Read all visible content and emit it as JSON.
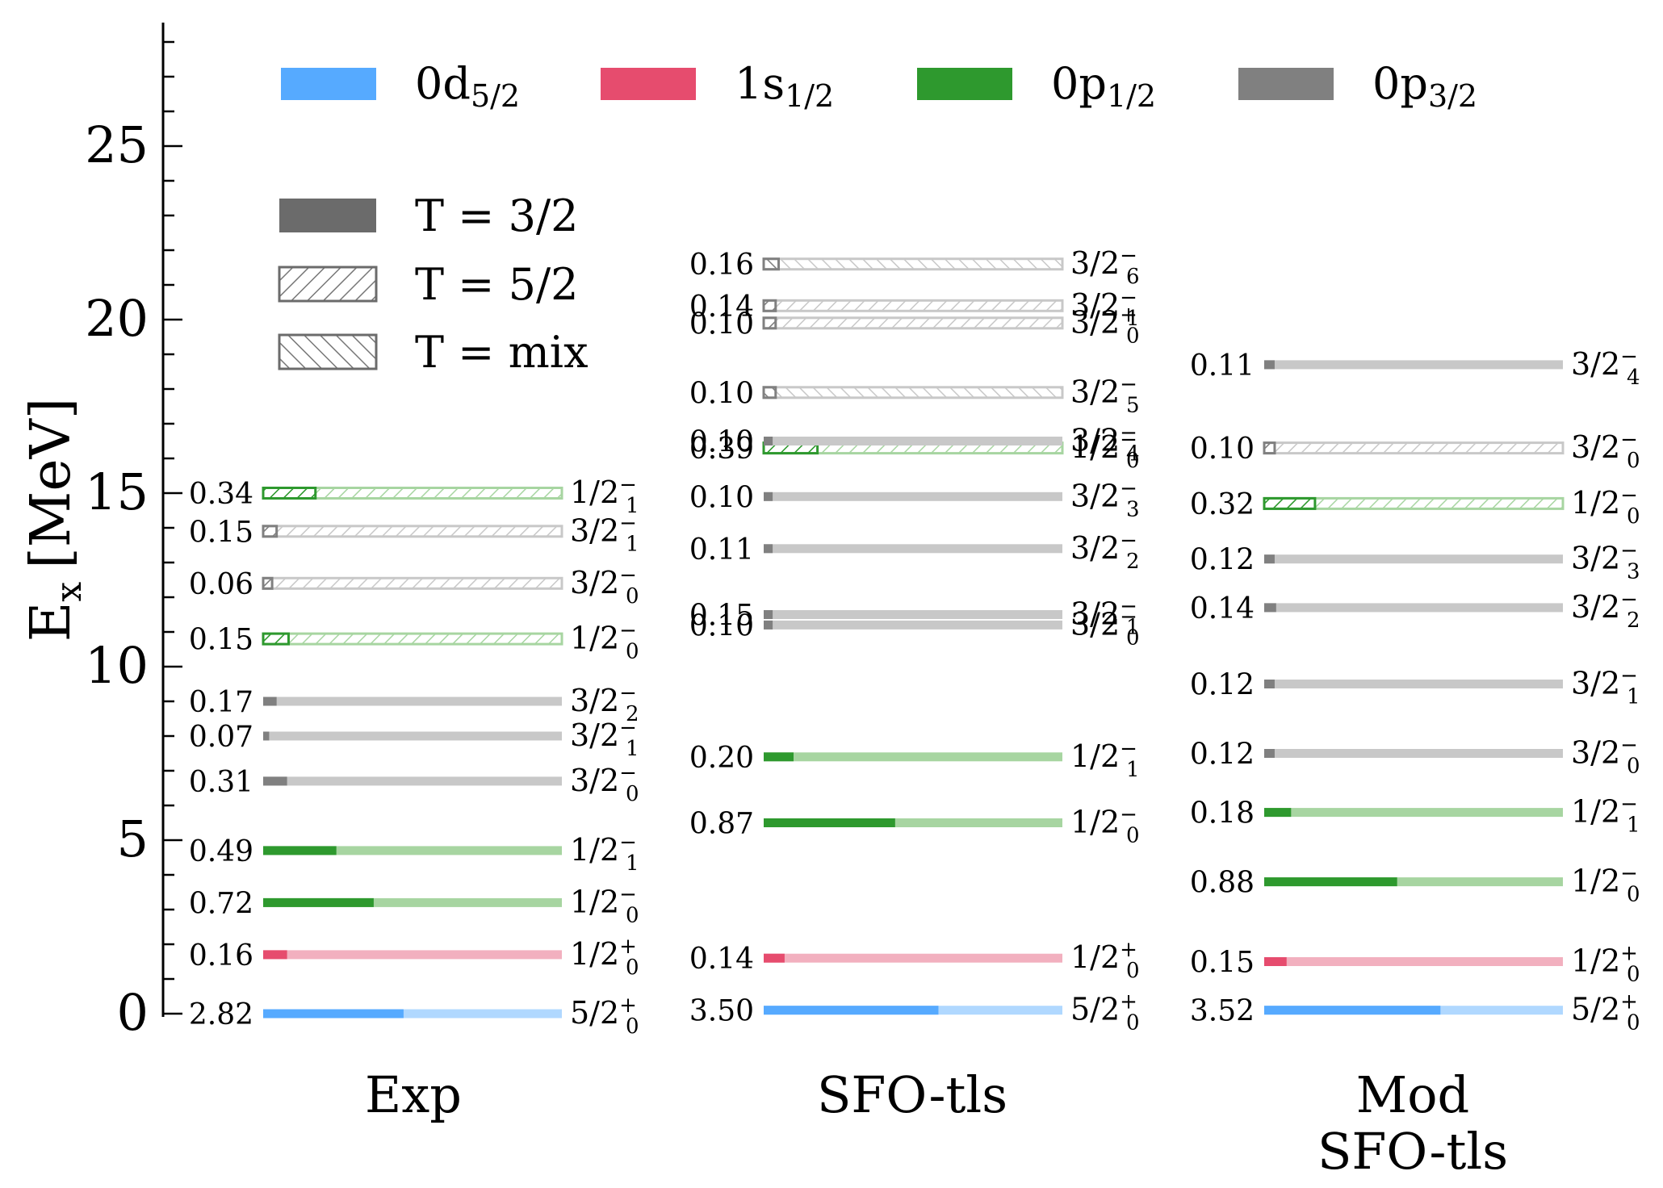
{
  "chart_data": {
    "type": "level-scheme",
    "ylabel": "E",
    "ylabel_sub": "x",
    "ylabel_unit": "[MeV]",
    "ylim": [
      0,
      28.5
    ],
    "yticks": [
      0,
      5,
      10,
      15,
      20,
      25
    ],
    "ytick_labels": [
      "0",
      "5",
      "10",
      "15",
      "20",
      "25"
    ],
    "ytick_minor_step": 1,
    "legend_orbitals": [
      {
        "key": "d52",
        "base": "0d",
        "sub": "5/2",
        "color": "#56aaff",
        "light": "#b0d8ff"
      },
      {
        "key": "s12",
        "base": "1s",
        "sub": "1/2",
        "color": "#e64c6e",
        "light": "#f2b0bf"
      },
      {
        "key": "p12",
        "base": "0p",
        "sub": "1/2",
        "color": "#2e992e",
        "light": "#a7d5a1"
      },
      {
        "key": "p32",
        "base": "0p",
        "sub": "3/2",
        "color": "#808080",
        "light": "#c8c8c8"
      }
    ],
    "legend_isospin": [
      {
        "key": "T32",
        "label": "T = 3/2",
        "style": "solid"
      },
      {
        "key": "T52",
        "label": "T = 5/2",
        "style": "hatch"
      },
      {
        "key": "Tmix",
        "label": "T = mix",
        "style": "backhatch"
      }
    ],
    "columns": [
      {
        "label": [
          "Exp"
        ],
        "levels": [
          {
            "E": 0.0,
            "sf": "2.82",
            "frac": 0.47,
            "orb": "d52",
            "T": "T32",
            "j": "5/2",
            "n": "0",
            "par": "+"
          },
          {
            "E": 1.7,
            "sf": "0.16",
            "frac": 0.08,
            "orb": "s12",
            "T": "T32",
            "j": "1/2",
            "n": "0",
            "par": "+"
          },
          {
            "E": 3.2,
            "sf": "0.72",
            "frac": 0.37,
            "orb": "p12",
            "T": "T32",
            "j": "1/2",
            "n": "0",
            "par": "−"
          },
          {
            "E": 4.7,
            "sf": "0.49",
            "frac": 0.245,
            "orb": "p12",
            "T": "T32",
            "j": "1/2",
            "n": "1",
            "par": "−"
          },
          {
            "E": 6.7,
            "sf": "0.31",
            "frac": 0.08,
            "orb": "p32",
            "T": "T32",
            "j": "3/2",
            "n": "0",
            "par": "−"
          },
          {
            "E": 8.0,
            "sf": "0.07",
            "frac": 0.02,
            "orb": "p32",
            "T": "T32",
            "j": "3/2",
            "n": "1",
            "par": "−"
          },
          {
            "E": 9.0,
            "sf": "0.17",
            "frac": 0.045,
            "orb": "p32",
            "T": "T32",
            "j": "3/2",
            "n": "2",
            "par": "−"
          },
          {
            "E": 10.8,
            "sf": "0.15",
            "frac": 0.085,
            "orb": "p12",
            "T": "T52",
            "j": "1/2",
            "n": "0",
            "par": "−"
          },
          {
            "E": 12.4,
            "sf": "0.06",
            "frac": 0.03,
            "orb": "p32",
            "T": "T52",
            "j": "3/2",
            "n": "0",
            "par": "−"
          },
          {
            "E": 13.9,
            "sf": "0.15",
            "frac": 0.045,
            "orb": "p32",
            "T": "T52",
            "j": "3/2",
            "n": "1",
            "par": "−"
          },
          {
            "E": 15.0,
            "sf": "0.34",
            "frac": 0.175,
            "orb": "p12",
            "T": "T52",
            "j": "1/2",
            "n": "1",
            "par": "−"
          }
        ]
      },
      {
        "label": [
          "SFO-tls"
        ],
        "levels": [
          {
            "E": 0.1,
            "sf": "3.50",
            "frac": 0.585,
            "orb": "d52",
            "T": "T32",
            "j": "5/2",
            "n": "0",
            "par": "+"
          },
          {
            "E": 1.6,
            "sf": "0.14",
            "frac": 0.07,
            "orb": "s12",
            "T": "T32",
            "j": "1/2",
            "n": "0",
            "par": "+"
          },
          {
            "E": 5.5,
            "sf": "0.87",
            "frac": 0.44,
            "orb": "p12",
            "T": "T32",
            "j": "1/2",
            "n": "0",
            "par": "−"
          },
          {
            "E": 7.4,
            "sf": "0.20",
            "frac": 0.1,
            "orb": "p12",
            "T": "T32",
            "j": "1/2",
            "n": "1",
            "par": "−"
          },
          {
            "E": 11.2,
            "sf": "0.10",
            "frac": 0.03,
            "orb": "p32",
            "T": "T32",
            "j": "3/2",
            "n": "0",
            "par": "−"
          },
          {
            "E": 11.5,
            "sf": "0.15",
            "frac": 0.03,
            "orb": "p32",
            "T": "T32",
            "j": "3/2",
            "n": "1",
            "par": "−"
          },
          {
            "E": 13.4,
            "sf": "0.11",
            "frac": 0.03,
            "orb": "p32",
            "T": "T32",
            "j": "3/2",
            "n": "2",
            "par": "−"
          },
          {
            "E": 14.9,
            "sf": "0.10",
            "frac": 0.03,
            "orb": "p32",
            "T": "T32",
            "j": "3/2",
            "n": "3",
            "par": "−"
          },
          {
            "E": 16.3,
            "sf": "0.39",
            "frac": 0.18,
            "orb": "p12",
            "T": "T52",
            "j": "1/2",
            "n": "0",
            "par": "−"
          },
          {
            "E": 16.5,
            "sf": "0.10",
            "frac": 0.03,
            "orb": "p32",
            "T": "T32",
            "j": "3/2",
            "n": "4",
            "par": "−"
          },
          {
            "E": 17.9,
            "sf": "0.10",
            "frac": 0.04,
            "orb": "p32",
            "T": "Tmix",
            "j": "3/2",
            "n": "5",
            "par": "−"
          },
          {
            "E": 19.9,
            "sf": "0.10",
            "frac": 0.04,
            "orb": "p32",
            "T": "T52",
            "j": "3/2",
            "n": "0",
            "par": "+"
          },
          {
            "E": 20.4,
            "sf": "0.14",
            "frac": 0.04,
            "orb": "p32",
            "T": "T52",
            "j": "3/2",
            "n": "1",
            "par": "−"
          },
          {
            "E": 21.6,
            "sf": "0.16",
            "frac": 0.05,
            "orb": "p32",
            "T": "Tmix",
            "j": "3/2",
            "n": "6",
            "par": "−"
          }
        ]
      },
      {
        "label": [
          "Mod",
          "SFO-tls"
        ],
        "levels": [
          {
            "E": 0.1,
            "sf": "3.52",
            "frac": 0.59,
            "orb": "d52",
            "T": "T32",
            "j": "5/2",
            "n": "0",
            "par": "+"
          },
          {
            "E": 1.5,
            "sf": "0.15",
            "frac": 0.075,
            "orb": "s12",
            "T": "T32",
            "j": "1/2",
            "n": "0",
            "par": "+"
          },
          {
            "E": 3.8,
            "sf": "0.88",
            "frac": 0.445,
            "orb": "p12",
            "T": "T32",
            "j": "1/2",
            "n": "0",
            "par": "−"
          },
          {
            "E": 5.8,
            "sf": "0.18",
            "frac": 0.09,
            "orb": "p12",
            "T": "T32",
            "j": "1/2",
            "n": "1",
            "par": "−"
          },
          {
            "E": 7.5,
            "sf": "0.12",
            "frac": 0.035,
            "orb": "p32",
            "T": "T32",
            "j": "3/2",
            "n": "0",
            "par": "−"
          },
          {
            "E": 9.5,
            "sf": "0.12",
            "frac": 0.035,
            "orb": "p32",
            "T": "T32",
            "j": "3/2",
            "n": "1",
            "par": "−"
          },
          {
            "E": 11.7,
            "sf": "0.14",
            "frac": 0.04,
            "orb": "p32",
            "T": "T32",
            "j": "3/2",
            "n": "2",
            "par": "−"
          },
          {
            "E": 13.1,
            "sf": "0.12",
            "frac": 0.035,
            "orb": "p32",
            "T": "T32",
            "j": "3/2",
            "n": "3",
            "par": "−"
          },
          {
            "E": 14.7,
            "sf": "0.32",
            "frac": 0.17,
            "orb": "p12",
            "T": "T52",
            "j": "1/2",
            "n": "0",
            "par": "−"
          },
          {
            "E": 16.3,
            "sf": "0.10",
            "frac": 0.035,
            "orb": "p32",
            "T": "T52",
            "j": "3/2",
            "n": "0",
            "par": "−"
          },
          {
            "E": 18.7,
            "sf": "0.11",
            "frac": 0.035,
            "orb": "p32",
            "T": "T32",
            "j": "3/2",
            "n": "4",
            "par": "−"
          }
        ]
      }
    ]
  }
}
